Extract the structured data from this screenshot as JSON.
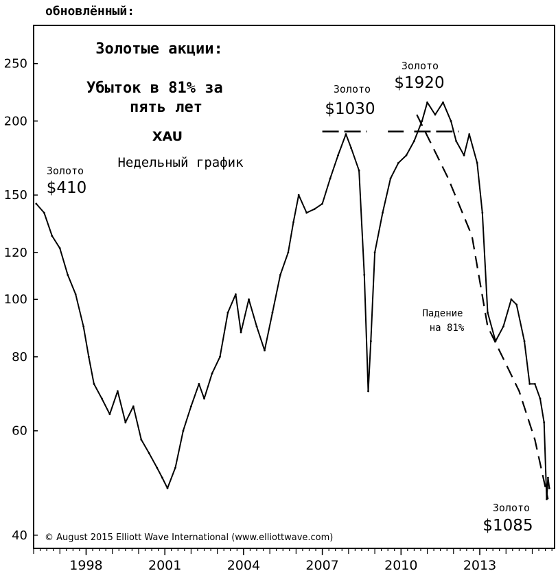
{
  "header": {
    "text": "обновлённый:"
  },
  "chart_data": {
    "type": "line",
    "title": "Золотые акции:",
    "subtitle": "Убыток в 81% за пять лет",
    "ticker": "XAU",
    "frequency": "Недельный график",
    "copyright": "© August 2015 Elliott Wave International (www.elliottwave.com)",
    "y_scale": "log",
    "ylim": [
      38,
      290
    ],
    "xlim": [
      1996.0,
      2015.85
    ],
    "grid": false,
    "y_ticks": [
      {
        "value": 40,
        "label": "40"
      },
      {
        "value": 60,
        "label": "60"
      },
      {
        "value": 80,
        "label": "80"
      },
      {
        "value": 100,
        "label": "100"
      },
      {
        "value": 120,
        "label": "120"
      },
      {
        "value": 150,
        "label": "150"
      },
      {
        "value": 200,
        "label": "200"
      },
      {
        "value": 250,
        "label": "250"
      }
    ],
    "x_ticks": [
      {
        "value": 1998,
        "label": "1998"
      },
      {
        "value": 2001,
        "label": "2001"
      },
      {
        "value": 2004,
        "label": "2004"
      },
      {
        "value": 2007,
        "label": "2007"
      },
      {
        "value": 2010,
        "label": "2010"
      },
      {
        "value": 2013,
        "label": "2013"
      }
    ],
    "series": [
      {
        "style": "solid",
        "x": [
          1996.1,
          1996.4,
          1996.7,
          1997.0,
          1997.3,
          1997.6,
          1997.9,
          1998.1,
          1998.3,
          1998.6,
          1998.9,
          1999.2,
          1999.5,
          1999.8,
          2000.1,
          2000.4,
          2000.7,
          2000.9,
          2001.1,
          2001.4,
          2001.7,
          2002.0,
          2002.3,
          2002.5,
          2002.8,
          2003.1,
          2003.4,
          2003.7,
          2003.9,
          2004.2,
          2004.5,
          2004.8,
          2005.1,
          2005.4,
          2005.7,
          2005.9,
          2006.1,
          2006.4,
          2006.7,
          2007.0,
          2007.3,
          2007.6,
          2007.9,
          2008.1,
          2008.4,
          2008.6,
          2008.75,
          2008.85,
          2009.0,
          2009.3,
          2009.6,
          2009.9,
          2010.2,
          2010.5,
          2010.8,
          2011.0,
          2011.3,
          2011.6,
          2011.9,
          2012.1,
          2012.4,
          2012.6,
          2012.9,
          2013.1,
          2013.3,
          2013.6,
          2013.9,
          2014.2,
          2014.4,
          2014.7,
          2014.9,
          2015.1,
          2015.3,
          2015.45,
          2015.55,
          2015.6,
          2015.65
        ],
        "values": [
          145,
          140,
          128,
          122,
          110,
          102,
          90,
          80,
          72,
          68,
          64,
          70,
          62,
          66,
          58,
          55,
          52,
          50,
          48,
          52,
          60,
          66,
          72,
          68,
          75,
          80,
          95,
          102,
          88,
          100,
          90,
          82,
          95,
          110,
          120,
          135,
          150,
          140,
          142,
          145,
          160,
          175,
          190,
          180,
          165,
          110,
          70,
          85,
          120,
          140,
          160,
          170,
          175,
          185,
          200,
          215,
          205,
          215,
          200,
          185,
          175,
          190,
          170,
          140,
          95,
          85,
          90,
          100,
          98,
          85,
          72,
          72,
          68,
          62,
          46,
          50,
          48
        ]
      },
      {
        "style": "dashed",
        "x": [
          2010.6,
          2011.8,
          2012.7,
          2013.3,
          2014.5,
          2015.1,
          2015.6
        ],
        "values": [
          205,
          160,
          128,
          90,
          70,
          58,
          46
        ]
      }
    ],
    "reference_segments": [
      {
        "value": 192,
        "x_from": 2007.0,
        "x_to": 2008.7
      },
      {
        "value": 192,
        "x_from": 2009.5,
        "x_to": 2010.1
      },
      {
        "value": 192,
        "x_from": 2010.5,
        "x_to": 2012.2
      }
    ],
    "annotations": [
      {
        "line1": "Золото",
        "line2": "$410"
      },
      {
        "line1": "Золото",
        "line2": "$1030"
      },
      {
        "line1": "Золото",
        "line2": "$1920"
      },
      {
        "line1": "Падение",
        "line2": "на 81%"
      },
      {
        "line1": "Золото",
        "line2": "$1085"
      }
    ]
  }
}
